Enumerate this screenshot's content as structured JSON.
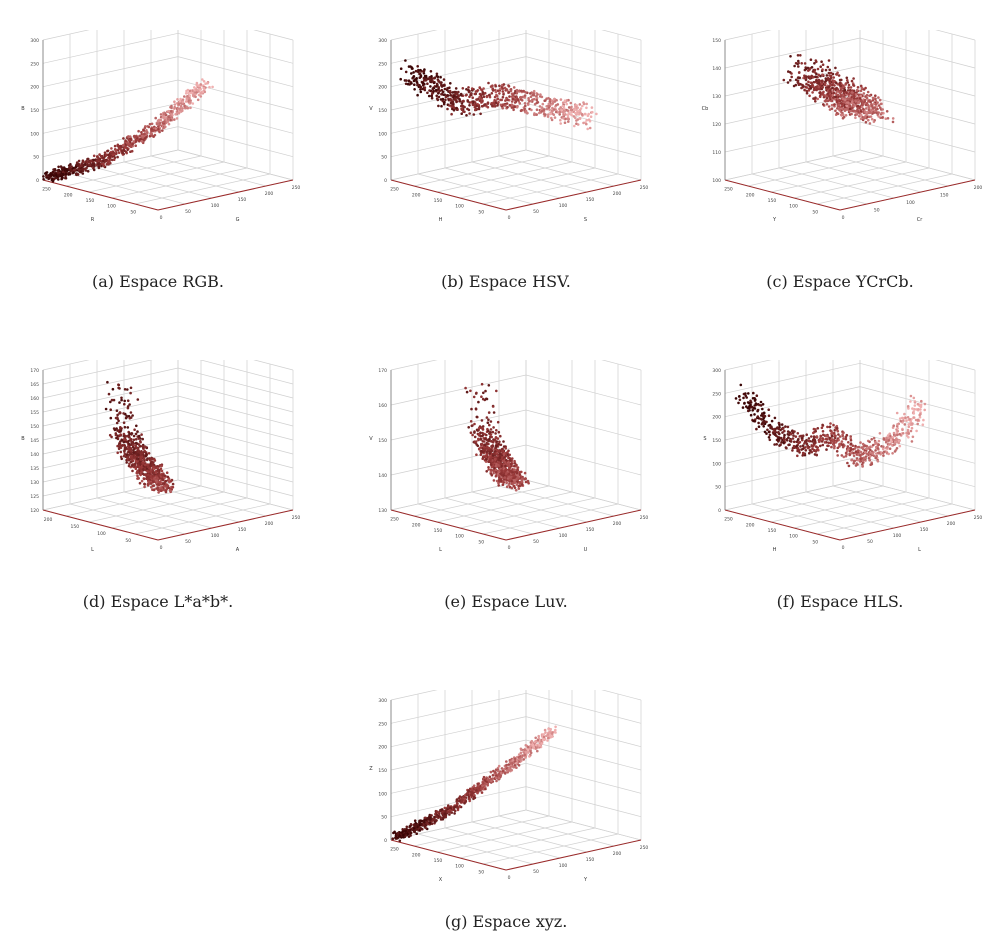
{
  "chart_data": [
    {
      "type": "scatter",
      "id": "a",
      "caption": "(a) Espace RGB.",
      "xlabel": "R",
      "ylabel": "G",
      "zlabel": "B",
      "z_ticks": [
        "0",
        "50",
        "100",
        "150",
        "200",
        "250",
        "300"
      ],
      "x_ticks": [
        "50",
        "100",
        "150",
        "200",
        "250"
      ],
      "y_ticks": [
        "0",
        "50",
        "100",
        "150",
        "200",
        "250"
      ],
      "shape": "line",
      "curve": [
        [
          0.0,
          0.03
        ],
        [
          0.35,
          0.1
        ],
        [
          0.7,
          0.3
        ],
        [
          1.0,
          0.55
        ]
      ],
      "spread": 0.05
    },
    {
      "type": "scatter",
      "id": "b",
      "caption": "(b) Espace HSV.",
      "xlabel": "H",
      "ylabel": "S",
      "zlabel": "V",
      "z_ticks": [
        "0",
        "50",
        "100",
        "150",
        "200",
        "250",
        "300"
      ],
      "x_ticks": [
        "50",
        "100",
        "150",
        "200",
        "250"
      ],
      "y_ticks": [
        "0",
        "50",
        "100",
        "150",
        "200",
        "250"
      ],
      "shape": "wave",
      "curve": [
        [
          0.0,
          0.8
        ],
        [
          0.3,
          0.55
        ],
        [
          0.5,
          0.6
        ],
        [
          0.75,
          0.5
        ],
        [
          1.0,
          0.4
        ]
      ],
      "spread": 0.08
    },
    {
      "type": "scatter",
      "id": "c",
      "caption": "(c) Espace YCrCb.",
      "xlabel": "Y",
      "ylabel": "Cr",
      "zlabel": "Cb",
      "z_ticks": [
        "100",
        "110",
        "120",
        "130",
        "140",
        "150"
      ],
      "x_ticks": [
        "50",
        "100",
        "150",
        "200",
        "250"
      ],
      "y_ticks": [
        "0",
        "50",
        "100",
        "150",
        "200"
      ],
      "shape": "blob",
      "curve": [
        [
          0.25,
          0.85
        ],
        [
          0.45,
          0.65
        ],
        [
          0.6,
          0.55
        ],
        [
          0.75,
          0.45
        ]
      ],
      "spread": 0.09
    },
    {
      "type": "scatter",
      "id": "d",
      "caption": "(d) Espace L*a*b*.",
      "xlabel": "L",
      "ylabel": "A",
      "zlabel": "B",
      "z_ticks": [
        "120",
        "125",
        "130",
        "135",
        "140",
        "145",
        "150",
        "155",
        "160",
        "165",
        "170"
      ],
      "x_ticks": [
        "50",
        "100",
        "150",
        "200"
      ],
      "y_ticks": [
        "0",
        "50",
        "100",
        "150",
        "200",
        "250"
      ],
      "shape": "drop",
      "curve": [
        [
          0.2,
          0.95
        ],
        [
          0.25,
          0.6
        ],
        [
          0.32,
          0.45
        ],
        [
          0.45,
          0.28
        ],
        [
          0.55,
          0.15
        ]
      ],
      "spread": 0.05
    },
    {
      "type": "scatter",
      "id": "e",
      "caption": "(e) Espace Luv.",
      "xlabel": "L",
      "ylabel": "U",
      "zlabel": "V",
      "z_ticks": [
        "130",
        "140",
        "150",
        "160",
        "170"
      ],
      "x_ticks": [
        "50",
        "100",
        "150",
        "200",
        "250"
      ],
      "y_ticks": [
        "0",
        "50",
        "100",
        "150",
        "200",
        "250"
      ],
      "shape": "drop",
      "curve": [
        [
          0.32,
          0.95
        ],
        [
          0.35,
          0.6
        ],
        [
          0.4,
          0.45
        ],
        [
          0.5,
          0.3
        ],
        [
          0.58,
          0.18
        ]
      ],
      "spread": 0.05
    },
    {
      "type": "scatter",
      "id": "f",
      "caption": "(f) Espace HLS.",
      "xlabel": "H",
      "ylabel": "L",
      "zlabel": "S",
      "z_ticks": [
        "0",
        "50",
        "100",
        "150",
        "200",
        "250",
        "300"
      ],
      "x_ticks": [
        "50",
        "100",
        "150",
        "200",
        "250"
      ],
      "y_ticks": [
        "0",
        "50",
        "100",
        "150",
        "200",
        "250"
      ],
      "shape": "wave",
      "curve": [
        [
          0.0,
          0.88
        ],
        [
          0.15,
          0.6
        ],
        [
          0.35,
          0.45
        ],
        [
          0.5,
          0.55
        ],
        [
          0.65,
          0.35
        ],
        [
          0.85,
          0.45
        ],
        [
          1.0,
          0.7
        ]
      ],
      "spread": 0.07
    },
    {
      "type": "scatter",
      "id": "g",
      "caption": "(g) Espace xyz.",
      "xlabel": "X",
      "ylabel": "Y",
      "zlabel": "Z",
      "z_ticks": [
        "0",
        "50",
        "100",
        "150",
        "200",
        "250",
        "300"
      ],
      "x_ticks": [
        "50",
        "100",
        "150",
        "200",
        "250"
      ],
      "y_ticks": [
        "0",
        "50",
        "100",
        "150",
        "200",
        "250"
      ],
      "shape": "line",
      "curve": [
        [
          0.0,
          0.03
        ],
        [
          0.35,
          0.18
        ],
        [
          0.7,
          0.42
        ],
        [
          1.0,
          0.65
        ]
      ],
      "spread": 0.04
    }
  ],
  "colors": {
    "dark": "#3a0505",
    "mid": "#9b3a3a",
    "light": "#f0b0b0",
    "grid": "#d0d0d0",
    "axis": "#9a2a2a"
  }
}
